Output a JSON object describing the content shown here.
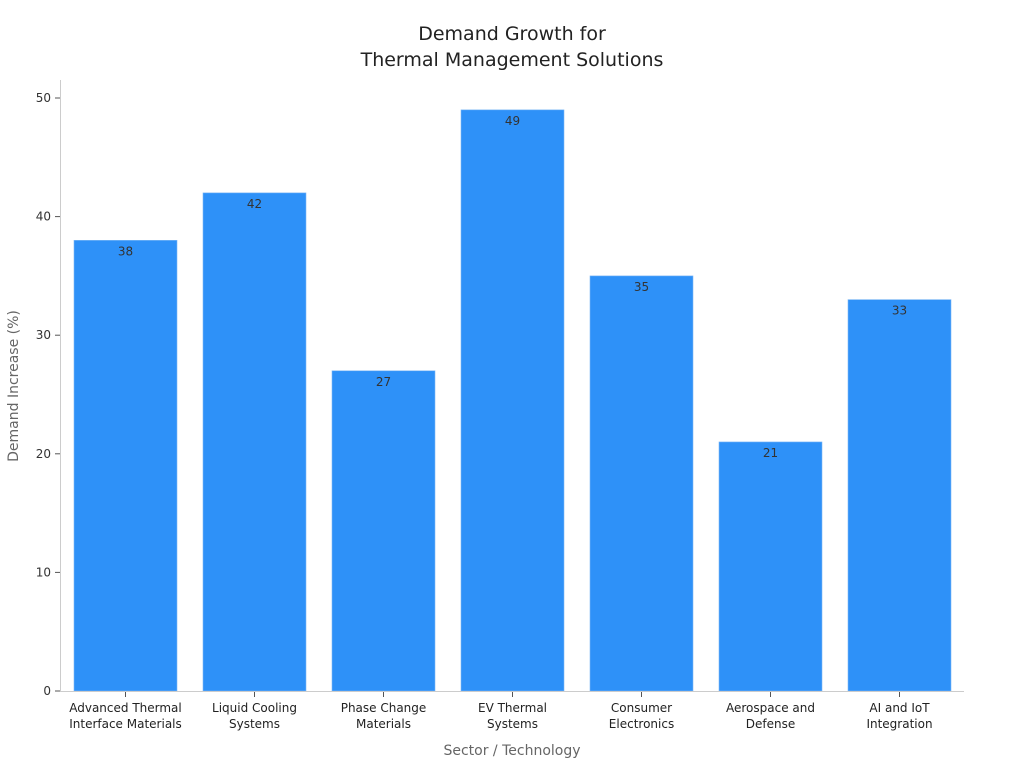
{
  "chart_data": {
    "type": "bar",
    "title": [
      "Demand Growth for",
      "Thermal Management Solutions"
    ],
    "xlabel": "Sector / Technology",
    "ylabel": "Demand Increase (%)",
    "categories": [
      [
        "Advanced Thermal",
        "Interface Materials"
      ],
      [
        "Liquid Cooling",
        "Systems"
      ],
      [
        "Phase Change",
        "Materials"
      ],
      [
        "EV Thermal",
        "Systems"
      ],
      [
        "Consumer",
        "Electronics"
      ],
      [
        "Aerospace and",
        "Defense"
      ],
      [
        "AI and IoT",
        "Integration"
      ]
    ],
    "values": [
      38,
      42,
      27,
      49,
      35,
      21,
      33
    ],
    "ylim": [
      0,
      50
    ],
    "yticks": [
      0,
      10,
      20,
      30,
      40,
      50
    ],
    "grid": false,
    "bar_color": "#2E91F8",
    "data_labels": true
  }
}
